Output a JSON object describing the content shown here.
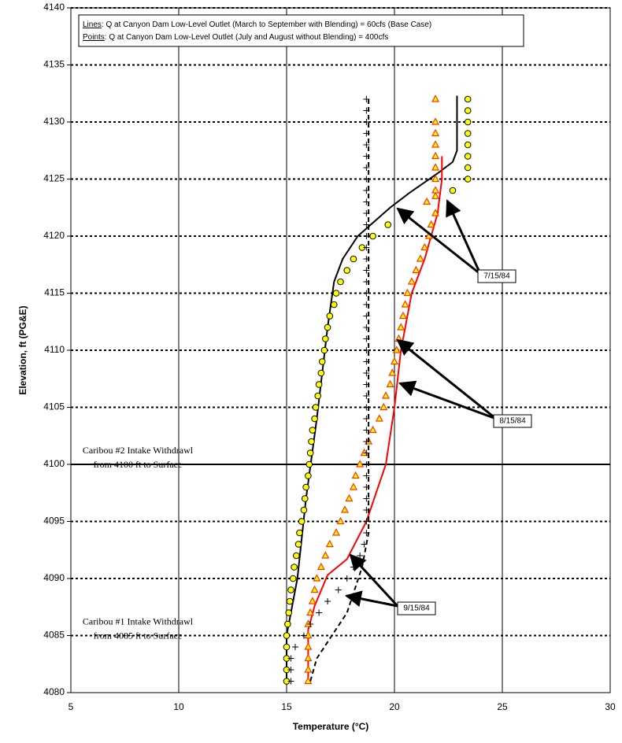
{
  "chart_data": {
    "type": "scatter",
    "xlabel": "Temperature (°C)",
    "ylabel": "Elevation, ft (PG&E)",
    "xlim": [
      5,
      30
    ],
    "ylim": [
      4080,
      4140
    ],
    "xticks": [
      5,
      10,
      15,
      20,
      25,
      30
    ],
    "yticks": [
      4080,
      4085,
      4090,
      4095,
      4100,
      4105,
      4110,
      4115,
      4120,
      4125,
      4130,
      4135,
      4140
    ],
    "legend": [
      {
        "key": "Lines",
        "text": ": Q at Canyon Dam Low-Level Outlet (March to September with Blending) = 60cfs (Base Case)"
      },
      {
        "key": "Points",
        "text": ": Q at Canyon Dam Low-Level Outlet (July and August without Blending) = 400cfs"
      }
    ],
    "reference_lines": [
      {
        "value": 4100,
        "solid": true,
        "text": [
          "Caribou #2 Intake Withdrawl",
          "from 4100 ft to Surface"
        ]
      },
      {
        "value": 4085,
        "solid": false,
        "text": [
          "Caribou #1 Intake Withdrawl",
          "from 4085 ft to Surface"
        ]
      }
    ],
    "annotations": [
      "7/15/84",
      "8/15/84",
      "9/15/84"
    ],
    "series": [
      {
        "style": "line",
        "color": "#000000",
        "dash": "none",
        "x": [
          15,
          15,
          15.5,
          15.9,
          16.4,
          16.9,
          17.2,
          17.6,
          18.3,
          19.8,
          20.7,
          22,
          22.7,
          22.9,
          22.9
        ],
        "values": [
          4081,
          4085,
          4090,
          4097,
          4104,
          4112,
          4116,
          4118,
          4120,
          4122.5,
          4123.8,
          4125.5,
          4126.5,
          4127.5,
          4132.3
        ]
      },
      {
        "style": "points",
        "marker": "circle",
        "color": "#ffff00",
        "stroke": "#000000",
        "x": [
          15,
          15,
          15,
          15,
          15,
          15.05,
          15.1,
          15.15,
          15.2,
          15.3,
          15.35,
          15.45,
          15.55,
          15.6,
          15.7,
          15.8,
          15.85,
          15.9,
          16,
          16.05,
          16.1,
          16.15,
          16.2,
          16.3,
          16.35,
          16.45,
          16.5,
          16.6,
          16.65,
          16.75,
          16.8,
          16.9,
          17,
          17.2,
          17.3,
          17.5,
          17.8,
          18.1,
          18.5,
          19,
          19.7,
          20.5,
          22.7,
          23.4,
          23.4,
          23.4,
          23.4,
          23.4,
          23.4,
          23.4,
          23.4
        ],
        "values": [
          4081,
          4082,
          4083,
          4084,
          4085,
          4086,
          4087,
          4088,
          4089,
          4090,
          4091,
          4092,
          4093,
          4094,
          4095,
          4096,
          4097,
          4098,
          4099,
          4100,
          4101,
          4102,
          4103,
          4104,
          4105,
          4106,
          4107,
          4108,
          4109,
          4110,
          4111,
          4112,
          4113,
          4114,
          4115,
          4116,
          4117,
          4118,
          4119,
          4120,
          4121,
          4122,
          4124,
          4125,
          4126,
          4127,
          4128,
          4129,
          4130,
          4131,
          4132
        ]
      },
      {
        "style": "line",
        "color": "#ff0000",
        "dash": "none",
        "x": [
          16,
          16,
          16.3,
          16.9,
          17.8,
          18.7,
          19.6,
          20,
          20.3,
          20.8,
          21.4,
          21.7,
          22,
          22.2,
          22.2
        ],
        "values": [
          4081,
          4085.5,
          4087.6,
          4090.3,
          4091.7,
          4095,
          4100,
          4105,
          4110,
          4115,
          4118,
          4120,
          4122,
          4125,
          4127
        ]
      },
      {
        "style": "points",
        "marker": "triangle",
        "color": "#ffff00",
        "stroke": "#ff3300",
        "x": [
          16,
          16,
          16,
          16,
          16,
          16,
          16.1,
          16.2,
          16.3,
          16.4,
          16.6,
          16.8,
          17,
          17.3,
          17.5,
          17.7,
          17.9,
          18.1,
          18.2,
          18.4,
          18.6,
          18.8,
          19,
          19.3,
          19.5,
          19.6,
          19.8,
          19.9,
          20,
          20.1,
          20.2,
          20.3,
          20.4,
          20.5,
          20.6,
          20.8,
          21,
          21.2,
          21.4,
          21.6,
          21.7,
          21.9,
          21.5,
          21.9,
          21.9,
          21.9,
          21.9,
          21.9,
          21.9,
          21.9,
          21.9,
          21.9
        ],
        "values": [
          4081,
          4082,
          4083,
          4084,
          4085,
          4086,
          4087,
          4088,
          4089,
          4090,
          4091,
          4092,
          4093,
          4094,
          4095,
          4096,
          4097,
          4098,
          4099,
          4100,
          4101,
          4102,
          4103,
          4104,
          4105,
          4106,
          4107,
          4108,
          4109,
          4110,
          4111,
          4112,
          4113,
          4114,
          4115,
          4116,
          4117,
          4118,
          4119,
          4120,
          4121,
          4122,
          4123,
          4123.5,
          4124,
          4125,
          4126,
          4127,
          4128,
          4129,
          4130,
          4132
        ]
      },
      {
        "style": "line",
        "color": "#000000",
        "dash": "6,4",
        "x": [
          16.1,
          16.4,
          17.8,
          18.5,
          18.8,
          18.8
        ],
        "values": [
          4081,
          4083,
          4087,
          4091,
          4094,
          4132
        ]
      },
      {
        "style": "points",
        "marker": "plus",
        "color": "#000000",
        "x": [
          15.2,
          15.2,
          15.2,
          15.4,
          15.8,
          16.1,
          16.5,
          16.9,
          17.4,
          17.8,
          18.1,
          18.4,
          18.6,
          18.7,
          18.7,
          18.7,
          18.7,
          18.7,
          18.7,
          18.7,
          18.7,
          18.7,
          18.7,
          18.7,
          18.7,
          18.7,
          18.7,
          18.7,
          18.7,
          18.7,
          18.7,
          18.7,
          18.7,
          18.7,
          18.7,
          18.7,
          18.7,
          18.7,
          18.7,
          18.7,
          18.7,
          18.7,
          18.7,
          18.7,
          18.7,
          18.7,
          18.7,
          18.7,
          18.7,
          18.7,
          18.7,
          18.7
        ],
        "values": [
          4081,
          4082,
          4083,
          4084,
          4085,
          4086,
          4087,
          4088,
          4089,
          4090,
          4091,
          4092,
          4093,
          4094,
          4095,
          4096,
          4097,
          4098,
          4099,
          4100,
          4101,
          4102,
          4103,
          4104,
          4105,
          4106,
          4107,
          4108,
          4109,
          4110,
          4111,
          4112,
          4113,
          4114,
          4115,
          4116,
          4117,
          4118,
          4119,
          4120,
          4121,
          4122,
          4123,
          4124,
          4125,
          4126,
          4127,
          4128,
          4129,
          4130,
          4131,
          4132
        ]
      }
    ]
  }
}
